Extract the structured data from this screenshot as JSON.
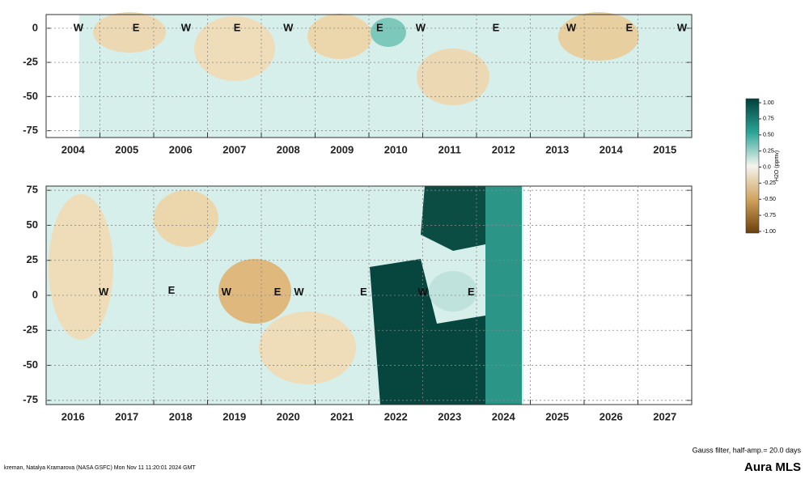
{
  "chart_data": [
    {
      "type": "heatmap",
      "categories": [
        "2004",
        "2005",
        "2006",
        "2007",
        "2008",
        "2009",
        "2010",
        "2011",
        "2012",
        "2013",
        "2014",
        "2015"
      ],
      "ylim": [
        -80,
        10
      ],
      "yticks": [
        0,
        -25,
        -50,
        -75
      ],
      "grid": true,
      "annotations": [
        {
          "text": "W",
          "x": 2004.6,
          "y": 0
        },
        {
          "text": "E",
          "x": 2005.67,
          "y": 0
        },
        {
          "text": "W",
          "x": 2006.6,
          "y": 0
        },
        {
          "text": "E",
          "x": 2007.55,
          "y": 0
        },
        {
          "text": "W",
          "x": 2008.5,
          "y": 0
        },
        {
          "text": "E",
          "x": 2010.2,
          "y": 0
        },
        {
          "text": "W",
          "x": 2010.96,
          "y": 0
        },
        {
          "text": "E",
          "x": 2012.36,
          "y": 0
        },
        {
          "text": "W",
          "x": 2013.76,
          "y": 0
        },
        {
          "text": "E",
          "x": 2014.84,
          "y": 0
        },
        {
          "text": "W",
          "x": 2015.82,
          "y": 0
        }
      ]
    },
    {
      "type": "heatmap",
      "categories": [
        "2016",
        "2017",
        "2018",
        "2019",
        "2020",
        "2021",
        "2022",
        "2023",
        "2024",
        "2025",
        "2026",
        "2027"
      ],
      "ylim": [
        -78,
        78
      ],
      "yticks": [
        75,
        50,
        25,
        0,
        -25,
        -50,
        -75
      ],
      "grid": true,
      "annotations": [
        {
          "text": "W",
          "x": 2017.07,
          "y": 2
        },
        {
          "text": "E",
          "x": 2018.33,
          "y": 3
        },
        {
          "text": "W",
          "x": 2019.35,
          "y": 2
        },
        {
          "text": "E",
          "x": 2020.3,
          "y": 2
        },
        {
          "text": "W",
          "x": 2020.7,
          "y": 2
        },
        {
          "text": "E",
          "x": 2021.9,
          "y": 2
        },
        {
          "text": "W",
          "x": 2023.0,
          "y": 2
        },
        {
          "text": "E",
          "x": 2023.9,
          "y": 2
        }
      ]
    }
  ],
  "colorbar": {
    "label": "H2O (ppmv)",
    "lim": [
      -1,
      1
    ],
    "ticks": [
      {
        "value": 1,
        "label": "1.00"
      },
      {
        "value": 0.75,
        "label": "0.75"
      },
      {
        "value": 0.5,
        "label": "0.50"
      },
      {
        "value": 0.25,
        "label": "0.25"
      },
      {
        "value": 0,
        "label": "0.0"
      },
      {
        "value": -0.25,
        "label": "-0.25"
      },
      {
        "value": -0.5,
        "label": "-0.50"
      },
      {
        "value": -0.75,
        "label": "-0.75"
      },
      {
        "value": -1,
        "label": "-1.00"
      }
    ]
  },
  "footer": {
    "credit": "kreman, Natalya Kramarova (NASA GSFC) Mon Nov 11 11:20:01 2024 GMT",
    "filter": "Gauss filter, half-amp.= 20.0 days",
    "source": "Aura MLS"
  }
}
